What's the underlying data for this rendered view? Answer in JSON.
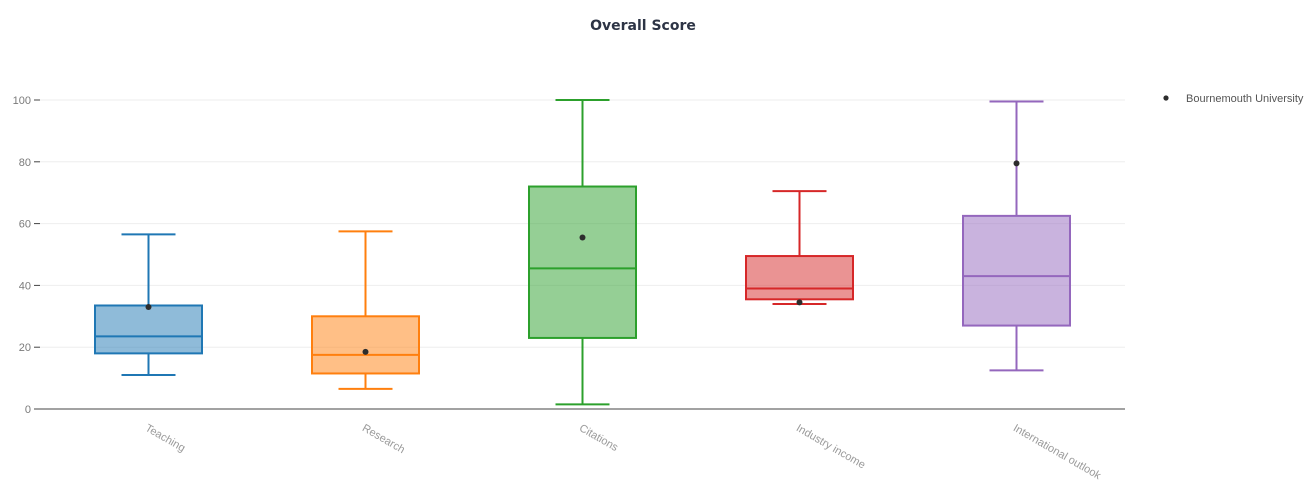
{
  "chart_data": {
    "type": "box",
    "title": "Overall Score",
    "xlabel": "",
    "ylabel": "",
    "ylim": [
      0,
      105
    ],
    "yticks": [
      0,
      20,
      40,
      60,
      80,
      100
    ],
    "grid": true,
    "legend_position": "top-right",
    "categories": [
      "Teaching",
      "Research",
      "Citations",
      "Industry income",
      "International outlook"
    ],
    "boxes": [
      {
        "category": "Teaching",
        "min": 11,
        "q1": 18,
        "median": 23.5,
        "q3": 33.5,
        "max": 56.5,
        "color": "#1f77b4"
      },
      {
        "category": "Research",
        "min": 6.5,
        "q1": 11.5,
        "median": 17.5,
        "q3": 30,
        "max": 57.5,
        "color": "#ff7f0e"
      },
      {
        "category": "Citations",
        "min": 1.5,
        "q1": 23,
        "median": 45.5,
        "q3": 72,
        "max": 100,
        "color": "#2ca02c"
      },
      {
        "category": "Industry income",
        "min": 34,
        "q1": 35.5,
        "median": 39,
        "q3": 49.5,
        "max": 70.5,
        "color": "#d62728"
      },
      {
        "category": "International outlook",
        "min": 12.5,
        "q1": 27,
        "median": 43,
        "q3": 62.5,
        "max": 99.5,
        "color": "#9467bd"
      }
    ],
    "points": {
      "name": "Bournemouth University",
      "color": "#2d2d2d",
      "values": [
        33,
        18.5,
        55.5,
        34.5,
        79.5
      ]
    }
  }
}
